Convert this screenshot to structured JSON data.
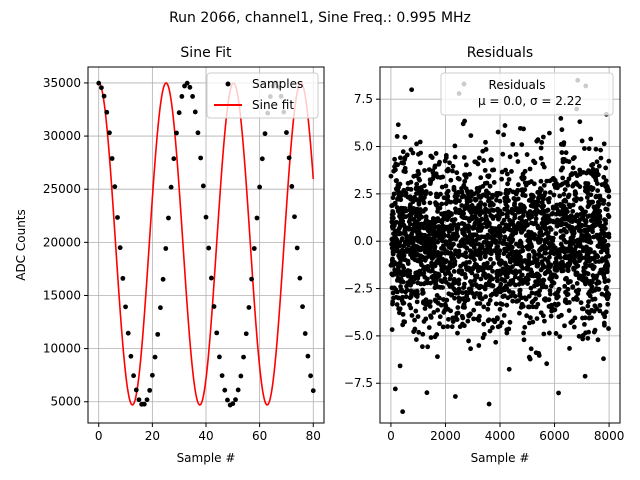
{
  "figure": {
    "suptitle": "Run 2066, channel1, Sine Freq.: 0.995 MHz"
  },
  "colors": {
    "samples": "#000000",
    "fit": "#ff0000",
    "grid": "#b0b0b0",
    "axes": "#000000",
    "background": "#ffffff"
  },
  "chart_data": [
    {
      "type": "line",
      "title": "Sine Fit",
      "xlabel": "Sample #",
      "ylabel": "ADC Counts",
      "xlim": [
        -4,
        84
      ],
      "ylim": [
        3000,
        36500
      ],
      "xticks": [
        0,
        20,
        40,
        60,
        80
      ],
      "yticks": [
        5000,
        10000,
        15000,
        20000,
        25000,
        30000,
        35000
      ],
      "grid": true,
      "legend_position": "upper right",
      "series": [
        {
          "name": "Samples",
          "style": "markers",
          "x": [
            0,
            1,
            2,
            3,
            4,
            5,
            6,
            7,
            8,
            9,
            10,
            11,
            12,
            13,
            14,
            15,
            16,
            17,
            18,
            19,
            20,
            21,
            22,
            23,
            24,
            25,
            26,
            27,
            28,
            29,
            30,
            31,
            32,
            33,
            34,
            35,
            36,
            37,
            38,
            39,
            40,
            41,
            42,
            43,
            44,
            45,
            46,
            47,
            48,
            49,
            50,
            51,
            52,
            53,
            54,
            55,
            56,
            57,
            58,
            59,
            60,
            61,
            62,
            63,
            64,
            65,
            66,
            67,
            68,
            69,
            70,
            71,
            72,
            73,
            74,
            75,
            76,
            77,
            78,
            79,
            80
          ],
          "y": [
            34980,
            34550,
            33760,
            32240,
            30310,
            27890,
            25240,
            22340,
            19500,
            16610,
            13930,
            11450,
            9280,
            7450,
            6110,
            5190,
            4760,
            4770,
            5190,
            6070,
            7490,
            9200,
            11340,
            13850,
            16520,
            19420,
            22290,
            25190,
            27870,
            30290,
            32200,
            33730,
            34710,
            34980,
            34590,
            33730,
            32270,
            30310,
            27940,
            25310,
            22370,
            19460,
            16640,
            13960,
            11480,
            9220,
            7460,
            6090,
            5160,
            4690,
            4820,
            5200,
            6110,
            7420,
            9200,
            11400,
            13870,
            16540,
            19420,
            22290,
            25200,
            27860,
            30230,
            32160,
            33720,
            34690,
            35010,
            34610,
            33740,
            32260,
            30330,
            27950,
            25260,
            22410,
            19470,
            16630,
            13950,
            11420,
            9290,
            7440,
            6040
          ]
        },
        {
          "name": "Sine fit",
          "style": "line",
          "function": "y = 19850 + 15150*cos(2*pi*x*0.995/25)"
        }
      ]
    },
    {
      "type": "scatter",
      "title": "Residuals",
      "xlabel": "Sample #",
      "ylabel": "",
      "xlim": [
        -400,
        8400
      ],
      "ylim": [
        -9.6,
        9.2
      ],
      "xticks": [
        0,
        2000,
        4000,
        6000,
        8000
      ],
      "yticks": [
        -7.5,
        -5.0,
        -2.5,
        0.0,
        2.5,
        5.0,
        7.5
      ],
      "ytick_labels": [
        "−7.5",
        "−5.0",
        "−2.5",
        "0.0",
        "2.5",
        "5.0",
        "7.5"
      ],
      "grid": true,
      "legend_position": "upper right",
      "series": [
        {
          "name": "Residuals",
          "n_points": 8000,
          "mean": 0.0,
          "std": 2.22
        }
      ],
      "legend_label": "μ = 0.0, σ = 2.22",
      "outliers": [
        {
          "x": 430,
          "y": -9.0
        },
        {
          "x": 760,
          "y": 8.0
        },
        {
          "x": 2500,
          "y": 7.8
        },
        {
          "x": 3600,
          "y": -8.6
        },
        {
          "x": 6850,
          "y": 8.5
        },
        {
          "x": 1320,
          "y": -8.0
        },
        {
          "x": 7900,
          "y": 6.7
        }
      ]
    }
  ]
}
